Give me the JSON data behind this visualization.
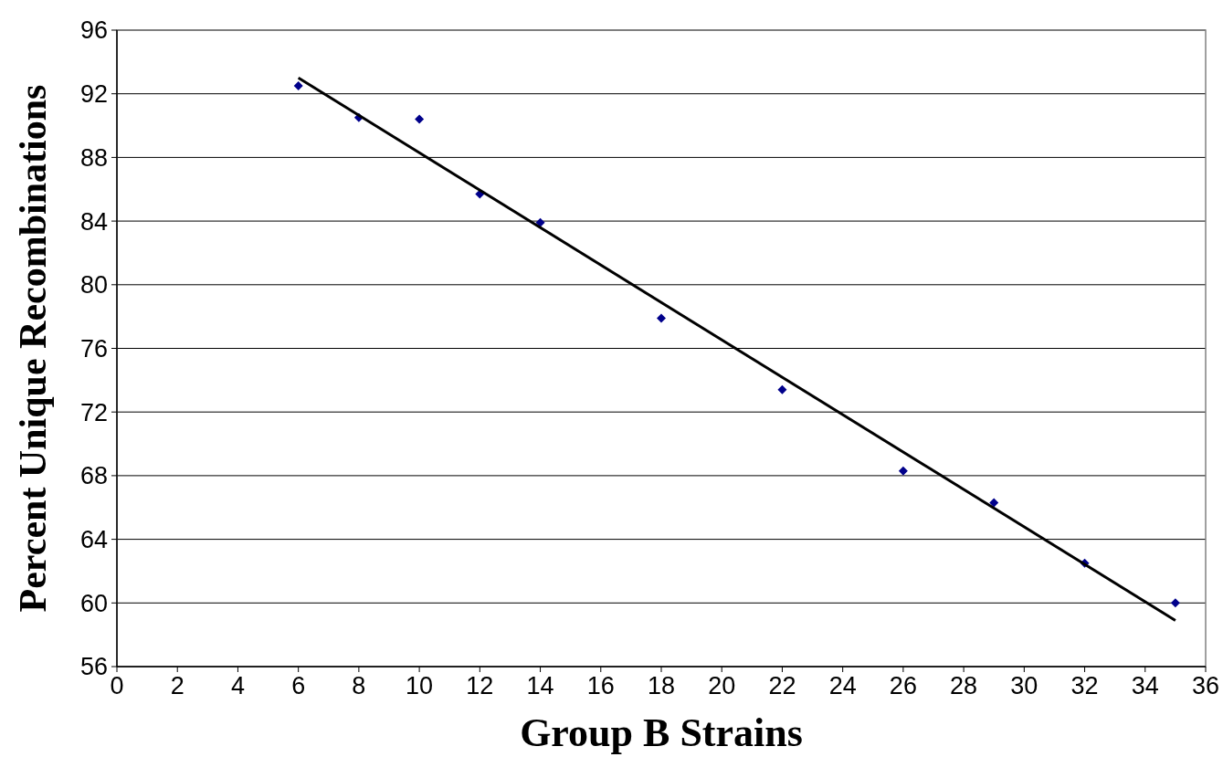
{
  "chart_data": {
    "type": "scatter",
    "xlabel": "Group B Strains",
    "ylabel": "Percent Unique Recombinations",
    "x": [
      6,
      8,
      10,
      12,
      14,
      18,
      22,
      26,
      29,
      32,
      35
    ],
    "series": [
      {
        "color": "#00008b",
        "marker": "diamond",
        "values": [
          92.5,
          90.5,
          90.4,
          85.7,
          83.9,
          77.9,
          73.4,
          68.3,
          66.3,
          62.5,
          60.0
        ]
      },
      {
        "type": "line",
        "color": "#000000",
        "marker": "none",
        "line_style": "solid",
        "x": [
          6,
          35
        ],
        "values": [
          93.0,
          58.9
        ]
      }
    ],
    "xlim": [
      0,
      36
    ],
    "xticks": [
      0,
      2,
      4,
      6,
      8,
      10,
      12,
      14,
      16,
      18,
      20,
      22,
      24,
      26,
      28,
      30,
      32,
      34,
      36
    ],
    "ylim": [
      56,
      96
    ],
    "yticks": [
      56,
      60,
      64,
      68,
      72,
      76,
      80,
      84,
      88,
      92,
      96
    ],
    "grid": "y"
  }
}
